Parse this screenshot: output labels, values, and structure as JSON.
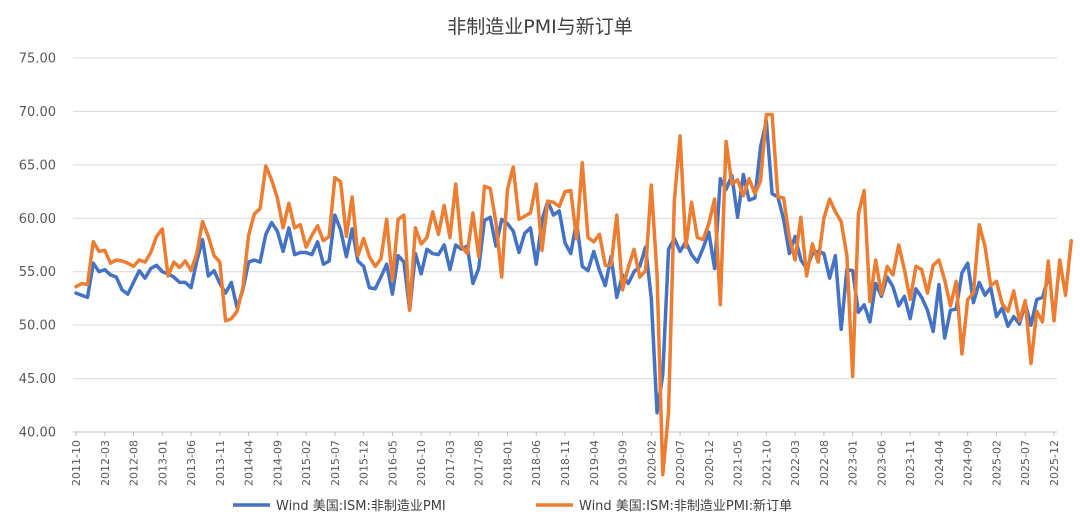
{
  "chart_data": {
    "type": "line",
    "title": "非制造业PMI与新订单",
    "xlabel": "",
    "ylabel": "",
    "ylim": [
      40,
      75
    ],
    "yticks": [
      "40.00",
      "45.00",
      "50.00",
      "55.00",
      "60.00",
      "65.00",
      "70.00",
      "75.00"
    ],
    "xticks": [
      "2011-10",
      "2012-03",
      "2012-08",
      "2013-01",
      "2013-06",
      "2013-11",
      "2014-04",
      "2014-09",
      "2015-02",
      "2015-07",
      "2015-12",
      "2016-05",
      "2016-10",
      "2017-03",
      "2017-08",
      "2018-01",
      "2018-06",
      "2018-11",
      "2019-04",
      "2019-09",
      "2020-02",
      "2020-07",
      "2020-12",
      "2021-05",
      "2021-10",
      "2022-03",
      "2022-08",
      "2023-01",
      "2023-06",
      "2023-11",
      "2024-04",
      "2024-09",
      "2025-02",
      "2025-07",
      "2025-12"
    ],
    "x_start": "2011-10",
    "x_end": "2025-12",
    "grid": "horizontal",
    "legend_position": "bottom",
    "colors": {
      "pmi": "#4472C4",
      "new_orders": "#ED7D31"
    },
    "series": [
      {
        "name": "Wind 美国:ISM:非制造业PMI",
        "color": "#4472C4",
        "values": [
          53.0,
          52.8,
          52.6,
          55.8,
          55.0,
          55.2,
          54.7,
          54.5,
          53.3,
          52.9,
          54.0,
          55.1,
          54.4,
          55.3,
          55.6,
          55.0,
          54.8,
          54.5,
          54.0,
          54.0,
          53.5,
          56.0,
          58.0,
          54.6,
          55.1,
          53.9,
          53.0,
          54.0,
          51.6,
          53.3,
          55.9,
          56.1,
          55.9,
          58.5,
          59.6,
          58.8,
          56.9,
          59.1,
          56.6,
          56.8,
          56.8,
          56.6,
          57.8,
          55.7,
          56.0,
          60.3,
          58.9,
          56.4,
          59.0,
          56.0,
          55.5,
          53.5,
          53.4,
          54.5,
          55.7,
          52.9,
          56.5,
          55.9,
          51.4,
          56.7,
          54.8,
          57.1,
          56.7,
          56.6,
          57.5,
          55.2,
          57.5,
          57.1,
          57.4,
          53.9,
          55.3,
          59.8,
          60.1,
          57.4,
          59.9,
          59.5,
          58.8,
          56.8,
          58.6,
          59.1,
          55.7,
          59.8,
          61.6,
          60.3,
          60.7,
          57.7,
          56.7,
          59.7,
          55.5,
          55.1,
          56.9,
          55.1,
          53.7,
          56.4,
          52.6,
          54.7,
          53.9,
          55.0,
          55.5,
          57.3,
          52.5,
          41.8,
          45.4,
          57.1,
          58.1,
          56.9,
          57.8,
          56.6,
          55.9,
          57.2,
          58.7,
          55.3,
          63.7,
          62.7,
          64.0,
          60.1,
          64.1,
          61.7,
          61.9,
          66.7,
          69.1,
          62.3,
          62.0,
          59.9,
          56.7,
          58.3,
          56.1,
          55.3,
          56.7,
          56.9,
          56.7,
          54.4,
          56.5,
          49.6,
          55.2,
          55.1,
          51.2,
          51.9,
          50.3,
          53.9,
          52.7,
          54.5,
          53.6,
          51.8,
          52.7,
          50.6,
          53.4,
          52.6,
          51.4,
          49.4,
          53.8,
          48.8,
          51.4,
          51.5,
          54.9,
          55.8,
          52.1,
          54.0,
          52.8,
          53.5,
          50.8,
          51.6,
          49.9,
          50.8,
          50.1,
          52.0,
          50.0,
          52.4,
          52.6,
          54.4
        ]
      },
      {
        "name": "Wind 美国:ISM:非制造业PMI:新订单",
        "color": "#ED7D31",
        "values": [
          53.6,
          53.9,
          53.8,
          57.8,
          56.9,
          57.0,
          55.8,
          56.1,
          56.0,
          55.8,
          55.5,
          56.1,
          55.9,
          56.8,
          58.3,
          59.0,
          54.6,
          55.9,
          55.4,
          56.0,
          55.1,
          56.7,
          59.7,
          58.3,
          56.5,
          55.9,
          50.4,
          50.6,
          51.3,
          53.5,
          58.4,
          60.4,
          60.9,
          64.9,
          63.6,
          61.9,
          59.1,
          61.4,
          59.1,
          59.4,
          57.3,
          58.4,
          59.3,
          57.9,
          58.3,
          63.8,
          63.4,
          58.3,
          62.0,
          56.5,
          58.1,
          56.4,
          55.5,
          56.2,
          59.9,
          54.2,
          59.9,
          60.3,
          51.4,
          59.1,
          57.6,
          58.2,
          60.6,
          58.5,
          61.2,
          58.2,
          63.2,
          57.4,
          56.7,
          60.5,
          56.4,
          63.0,
          62.8,
          59.6,
          54.5,
          62.7,
          64.8,
          59.9,
          60.2,
          60.5,
          63.2,
          57.0,
          61.6,
          61.5,
          61.1,
          62.5,
          62.6,
          58.1,
          65.2,
          58.2,
          57.8,
          58.5,
          55.6,
          55.6,
          60.3,
          53.3,
          55.4,
          57.1,
          54.5,
          55.1,
          63.1,
          54.7,
          36.0,
          41.9,
          61.6,
          67.7,
          57.3,
          61.5,
          58.2,
          58.0,
          59.5,
          61.8,
          51.9,
          67.2,
          63.2,
          63.6,
          62.1,
          63.7,
          62.3,
          63.5,
          69.7,
          69.7,
          62.0,
          61.9,
          58.2,
          56.1,
          60.1,
          54.6,
          57.6,
          55.9,
          60.0,
          61.8,
          60.6,
          59.7,
          56.5,
          45.2,
          60.4,
          62.6,
          52.2,
          56.1,
          52.9,
          55.5,
          54.7,
          57.5,
          55.2,
          52.4,
          55.5,
          55.2,
          53.0,
          55.6,
          56.1,
          54.2,
          51.8,
          54.1,
          47.3,
          52.4,
          53.0,
          59.4,
          57.4,
          53.7,
          54.1,
          52.0,
          51.3,
          53.2,
          50.4,
          52.3,
          46.4,
          51.3,
          50.3,
          56.0,
          50.4,
          56.1,
          52.8,
          57.9
        ]
      }
    ]
  }
}
